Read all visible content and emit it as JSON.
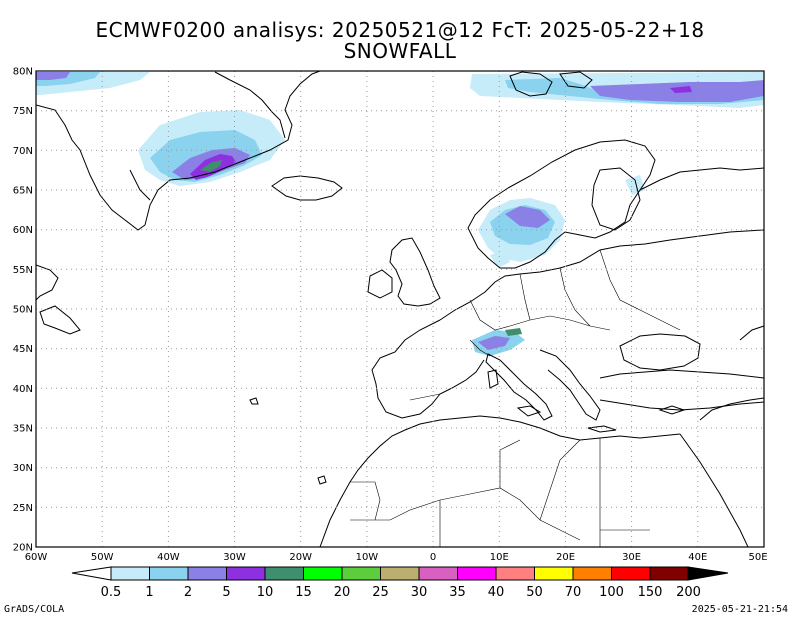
{
  "header": {
    "title_line1": "ECMWF0200 analisys: 20250521@12 FcT: 2025-05-22+18",
    "title_line2": "SNOWFALL"
  },
  "map": {
    "lat_labels": [
      "80N",
      "75N",
      "70N",
      "65N",
      "60N",
      "55N",
      "50N",
      "45N",
      "40N",
      "35N",
      "30N",
      "25N",
      "20N"
    ],
    "lon_labels": [
      "60W",
      "50W",
      "40W",
      "30W",
      "20W",
      "10W",
      "0",
      "10E",
      "20E",
      "30E",
      "40E",
      "50E"
    ],
    "grid": true,
    "grid_style": "dotted",
    "coastline_color": "#000000"
  },
  "colorbar": {
    "labels": [
      "0.5",
      "1",
      "2",
      "5",
      "10",
      "15",
      "20",
      "25",
      "30",
      "35",
      "40",
      "50",
      "70",
      "100",
      "150",
      "200"
    ],
    "colors": [
      "#c6ecfa",
      "#8ad2ee",
      "#8a80e6",
      "#8d30e0",
      "#3f8f6e",
      "#00ff00",
      "#5ccd3c",
      "#bcae6e",
      "#d860c0",
      "#ff00ff",
      "#ff8080",
      "#ffff00",
      "#ff8000",
      "#ff0000",
      "#800000"
    ],
    "arrow_right_color": "#000000",
    "arrow_left_color": "#ffffff"
  },
  "footer": {
    "left": "GrADS/COLA",
    "right": "2025-05-21-21:54"
  }
}
